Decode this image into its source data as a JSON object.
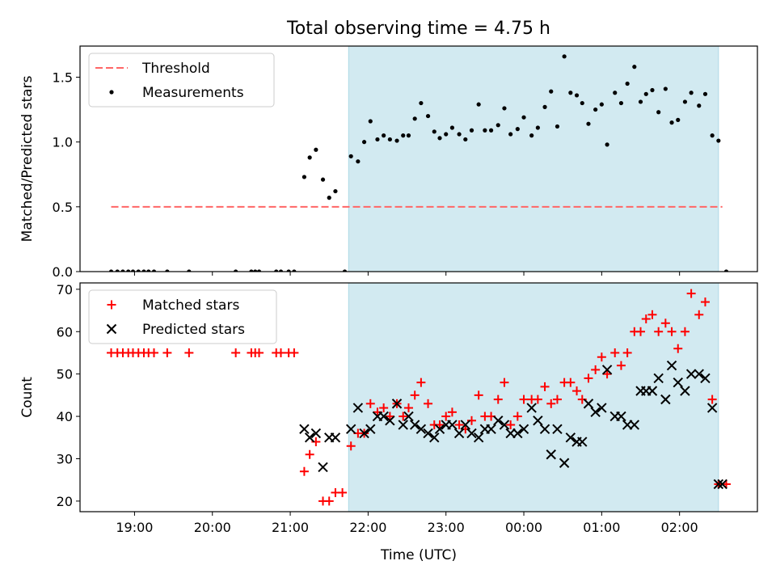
{
  "title": "Total observing time = 4.75 h",
  "x_axis": {
    "label": "Time (UTC)",
    "ticks": [
      {
        "x": 19.0,
        "label": "19:00"
      },
      {
        "x": 20.0,
        "label": "20:00"
      },
      {
        "x": 21.0,
        "label": "21:00"
      },
      {
        "x": 22.0,
        "label": "22:00"
      },
      {
        "x": 23.0,
        "label": "23:00"
      },
      {
        "x": 24.0,
        "label": "00:00"
      },
      {
        "x": 25.0,
        "label": "01:00"
      },
      {
        "x": 26.0,
        "label": "02:00"
      }
    ]
  },
  "colors": {
    "shade": "#add8e6",
    "threshold": "#ff6666",
    "measurements": "#000000",
    "matched": "#ff0000",
    "predicted": "#000000"
  },
  "chart_data": [
    {
      "type": "scatter",
      "xlim": [
        18.3,
        27.0
      ],
      "ylim": [
        0,
        1.74
      ],
      "ylabel": "Matched/Predicted stars",
      "yticks": [
        {
          "y": 0.0,
          "label": "0.0"
        },
        {
          "y": 0.5,
          "label": "0.5"
        },
        {
          "y": 1.0,
          "label": "1.0"
        },
        {
          "y": 1.5,
          "label": "1.5"
        }
      ],
      "shaded_span": [
        21.75,
        26.5
      ],
      "legend": {
        "location": "upper-left",
        "entries": [
          {
            "label": "Threshold",
            "marker": "dashed-line"
          },
          {
            "label": "Measurements",
            "marker": "dot"
          }
        ]
      },
      "threshold": {
        "y": 0.5,
        "x": [
          18.7,
          26.55
        ]
      },
      "measurements": [
        [
          18.7,
          0
        ],
        [
          18.78,
          0
        ],
        [
          18.85,
          0
        ],
        [
          18.92,
          0
        ],
        [
          18.98,
          0
        ],
        [
          19.05,
          0
        ],
        [
          19.12,
          0
        ],
        [
          19.18,
          0
        ],
        [
          19.25,
          0
        ],
        [
          19.42,
          0
        ],
        [
          19.7,
          0
        ],
        [
          20.3,
          0
        ],
        [
          20.5,
          0
        ],
        [
          20.55,
          0
        ],
        [
          20.6,
          0
        ],
        [
          20.82,
          0
        ],
        [
          20.88,
          0
        ],
        [
          20.98,
          0
        ],
        [
          21.05,
          0
        ],
        [
          21.18,
          0.73
        ],
        [
          21.25,
          0.88
        ],
        [
          21.33,
          0.94
        ],
        [
          21.42,
          0.71
        ],
        [
          21.5,
          0.57
        ],
        [
          21.58,
          0.62
        ],
        [
          21.7,
          0
        ],
        [
          21.78,
          0.89
        ],
        [
          21.87,
          0.85
        ],
        [
          21.95,
          1.0
        ],
        [
          22.03,
          1.16
        ],
        [
          22.12,
          1.02
        ],
        [
          22.2,
          1.05
        ],
        [
          22.28,
          1.02
        ],
        [
          22.37,
          1.01
        ],
        [
          22.45,
          1.05
        ],
        [
          22.52,
          1.05
        ],
        [
          22.6,
          1.18
        ],
        [
          22.68,
          1.3
        ],
        [
          22.77,
          1.2
        ],
        [
          22.85,
          1.08
        ],
        [
          22.92,
          1.03
        ],
        [
          23.0,
          1.06
        ],
        [
          23.08,
          1.11
        ],
        [
          23.17,
          1.06
        ],
        [
          23.25,
          1.02
        ],
        [
          23.33,
          1.09
        ],
        [
          23.42,
          1.29
        ],
        [
          23.5,
          1.09
        ],
        [
          23.58,
          1.09
        ],
        [
          23.67,
          1.13
        ],
        [
          23.75,
          1.26
        ],
        [
          23.83,
          1.06
        ],
        [
          23.92,
          1.1
        ],
        [
          24.0,
          1.19
        ],
        [
          24.1,
          1.05
        ],
        [
          24.18,
          1.11
        ],
        [
          24.27,
          1.27
        ],
        [
          24.35,
          1.39
        ],
        [
          24.43,
          1.12
        ],
        [
          24.52,
          1.66
        ],
        [
          24.6,
          1.38
        ],
        [
          24.68,
          1.36
        ],
        [
          24.75,
          1.3
        ],
        [
          24.83,
          1.14
        ],
        [
          24.92,
          1.25
        ],
        [
          25.0,
          1.29
        ],
        [
          25.07,
          0.98
        ],
        [
          25.17,
          1.38
        ],
        [
          25.25,
          1.3
        ],
        [
          25.33,
          1.45
        ],
        [
          25.42,
          1.58
        ],
        [
          25.5,
          1.31
        ],
        [
          25.57,
          1.37
        ],
        [
          25.65,
          1.4
        ],
        [
          25.73,
          1.23
        ],
        [
          25.82,
          1.41
        ],
        [
          25.9,
          1.15
        ],
        [
          25.98,
          1.17
        ],
        [
          26.07,
          1.31
        ],
        [
          26.15,
          1.38
        ],
        [
          26.25,
          1.28
        ],
        [
          26.33,
          1.37
        ],
        [
          26.42,
          1.05
        ],
        [
          26.5,
          1.01
        ],
        [
          26.6,
          0
        ]
      ]
    },
    {
      "type": "scatter",
      "xlim": [
        18.3,
        27.0
      ],
      "ylim": [
        17.5,
        71.5
      ],
      "ylabel": "Count",
      "yticks": [
        {
          "y": 20,
          "label": "20"
        },
        {
          "y": 30,
          "label": "30"
        },
        {
          "y": 40,
          "label": "40"
        },
        {
          "y": 50,
          "label": "50"
        },
        {
          "y": 60,
          "label": "60"
        },
        {
          "y": 70,
          "label": "70"
        }
      ],
      "shaded_span": [
        21.75,
        26.5
      ],
      "legend": {
        "location": "upper-left",
        "entries": [
          {
            "label": "Matched stars",
            "marker": "plus"
          },
          {
            "label": "Predicted stars",
            "marker": "x"
          }
        ]
      },
      "series": [
        {
          "name": "Matched stars",
          "marker": "plus",
          "points": [
            [
              18.7,
              55
            ],
            [
              18.78,
              55
            ],
            [
              18.85,
              55
            ],
            [
              18.92,
              55
            ],
            [
              18.98,
              55
            ],
            [
              19.05,
              55
            ],
            [
              19.12,
              55
            ],
            [
              19.18,
              55
            ],
            [
              19.25,
              55
            ],
            [
              19.42,
              55
            ],
            [
              19.7,
              55
            ],
            [
              20.3,
              55
            ],
            [
              20.5,
              55
            ],
            [
              20.55,
              55
            ],
            [
              20.6,
              55
            ],
            [
              20.82,
              55
            ],
            [
              20.88,
              55
            ],
            [
              20.98,
              55
            ],
            [
              21.05,
              55
            ],
            [
              21.18,
              27
            ],
            [
              21.25,
              31
            ],
            [
              21.33,
              34
            ],
            [
              21.42,
              20
            ],
            [
              21.5,
              20
            ],
            [
              21.58,
              22
            ],
            [
              21.67,
              22
            ],
            [
              21.78,
              33
            ],
            [
              21.87,
              36
            ],
            [
              21.95,
              36
            ],
            [
              22.03,
              43
            ],
            [
              22.12,
              41
            ],
            [
              22.2,
              42
            ],
            [
              22.28,
              40
            ],
            [
              22.37,
              43
            ],
            [
              22.45,
              40
            ],
            [
              22.52,
              42
            ],
            [
              22.6,
              45
            ],
            [
              22.68,
              48
            ],
            [
              22.77,
              43
            ],
            [
              22.85,
              38
            ],
            [
              22.92,
              38
            ],
            [
              23.0,
              40
            ],
            [
              23.08,
              41
            ],
            [
              23.17,
              38
            ],
            [
              23.25,
              37
            ],
            [
              23.33,
              39
            ],
            [
              23.42,
              45
            ],
            [
              23.5,
              40
            ],
            [
              23.58,
              40
            ],
            [
              23.67,
              44
            ],
            [
              23.75,
              48
            ],
            [
              23.83,
              38
            ],
            [
              23.92,
              40
            ],
            [
              24.0,
              44
            ],
            [
              24.1,
              44
            ],
            [
              24.18,
              44
            ],
            [
              24.27,
              47
            ],
            [
              24.35,
              43
            ],
            [
              24.43,
              44
            ],
            [
              24.52,
              48
            ],
            [
              24.6,
              48
            ],
            [
              24.68,
              46
            ],
            [
              24.75,
              44
            ],
            [
              24.83,
              49
            ],
            [
              24.92,
              51
            ],
            [
              25.0,
              54
            ],
            [
              25.07,
              50
            ],
            [
              25.17,
              55
            ],
            [
              25.25,
              52
            ],
            [
              25.33,
              55
            ],
            [
              25.42,
              60
            ],
            [
              25.5,
              60
            ],
            [
              25.57,
              63
            ],
            [
              25.65,
              64
            ],
            [
              25.73,
              60
            ],
            [
              25.82,
              62
            ],
            [
              25.9,
              60
            ],
            [
              25.98,
              56
            ],
            [
              26.07,
              60
            ],
            [
              26.15,
              69
            ],
            [
              26.25,
              64
            ],
            [
              26.33,
              67
            ],
            [
              26.42,
              44
            ],
            [
              26.5,
              24
            ],
            [
              26.6,
              24
            ]
          ]
        },
        {
          "name": "Predicted stars",
          "marker": "x",
          "points": [
            [
              21.18,
              37
            ],
            [
              21.25,
              35
            ],
            [
              21.33,
              36
            ],
            [
              21.42,
              28
            ],
            [
              21.5,
              35
            ],
            [
              21.58,
              35
            ],
            [
              21.78,
              37
            ],
            [
              21.87,
              42
            ],
            [
              21.95,
              36
            ],
            [
              22.03,
              37
            ],
            [
              22.12,
              40
            ],
            [
              22.2,
              40
            ],
            [
              22.28,
              39
            ],
            [
              22.37,
              43
            ],
            [
              22.45,
              38
            ],
            [
              22.52,
              40
            ],
            [
              22.6,
              38
            ],
            [
              22.68,
              37
            ],
            [
              22.77,
              36
            ],
            [
              22.85,
              35
            ],
            [
              22.92,
              37
            ],
            [
              23.0,
              38
            ],
            [
              23.08,
              38
            ],
            [
              23.17,
              36
            ],
            [
              23.25,
              38
            ],
            [
              23.33,
              36
            ],
            [
              23.42,
              35
            ],
            [
              23.5,
              37
            ],
            [
              23.58,
              37
            ],
            [
              23.67,
              39
            ],
            [
              23.75,
              38
            ],
            [
              23.83,
              36
            ],
            [
              23.92,
              36
            ],
            [
              24.0,
              37
            ],
            [
              24.1,
              42
            ],
            [
              24.18,
              39
            ],
            [
              24.27,
              37
            ],
            [
              24.35,
              31
            ],
            [
              24.43,
              37
            ],
            [
              24.52,
              29
            ],
            [
              24.6,
              35
            ],
            [
              24.68,
              34
            ],
            [
              24.75,
              34
            ],
            [
              24.83,
              43
            ],
            [
              24.92,
              41
            ],
            [
              25.0,
              42
            ],
            [
              25.07,
              51
            ],
            [
              25.17,
              40
            ],
            [
              25.25,
              40
            ],
            [
              25.33,
              38
            ],
            [
              25.42,
              38
            ],
            [
              25.5,
              46
            ],
            [
              25.57,
              46
            ],
            [
              25.65,
              46
            ],
            [
              25.73,
              49
            ],
            [
              25.82,
              44
            ],
            [
              25.9,
              52
            ],
            [
              25.98,
              48
            ],
            [
              26.07,
              46
            ],
            [
              26.15,
              50
            ],
            [
              26.25,
              50
            ],
            [
              26.33,
              49
            ],
            [
              26.42,
              42
            ],
            [
              26.5,
              24
            ],
            [
              26.55,
              24
            ]
          ]
        }
      ]
    }
  ]
}
